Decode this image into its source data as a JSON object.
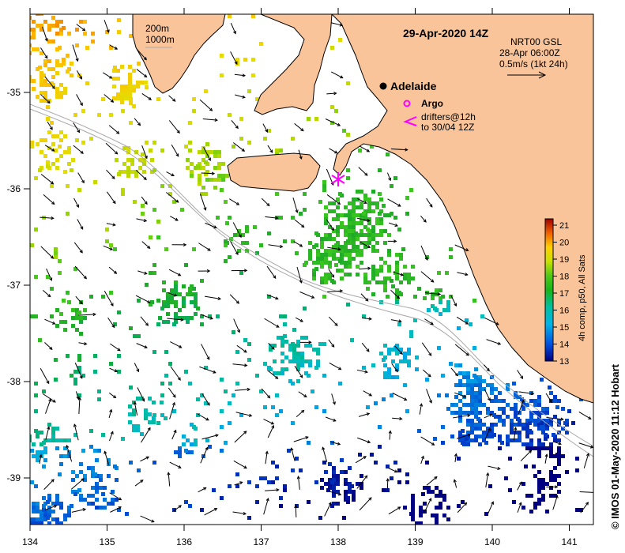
{
  "map": {
    "title": "29-Apr-2020 14Z",
    "product": {
      "line1": "NRT00 GSL",
      "line2": "28-Apr 06:00Z",
      "line3": "0.5m/s (1kt 24h)"
    },
    "contours": {
      "line1": "200m",
      "line2": "1000m"
    },
    "places": {
      "adelaide": "Adelaide"
    },
    "legend": {
      "argo": "Argo",
      "drifters_line1": "drifters@12h",
      "drifters_line2": "to 30/04 12Z",
      "argo_color": "#ff00ff",
      "drifter_color": "#ff00ff"
    },
    "x_axis": {
      "ticks": [
        "134",
        "135",
        "136",
        "137",
        "138",
        "139",
        "140",
        "141"
      ]
    },
    "y_axis": {
      "ticks": [
        "-35",
        "-36",
        "-37",
        "-38",
        "-39"
      ]
    },
    "colorbar": {
      "label": "4h comp, p50, All Sats",
      "ticks": [
        "13",
        "14",
        "15",
        "16",
        "17",
        "18",
        "19",
        "20",
        "21"
      ]
    },
    "credit": "© IMOS 01-May-2020 11:12 Hobart",
    "colors": {
      "land": "#f9c499",
      "ocean": "#ffffff",
      "bathymetry": "#aaaaaa"
    }
  }
}
